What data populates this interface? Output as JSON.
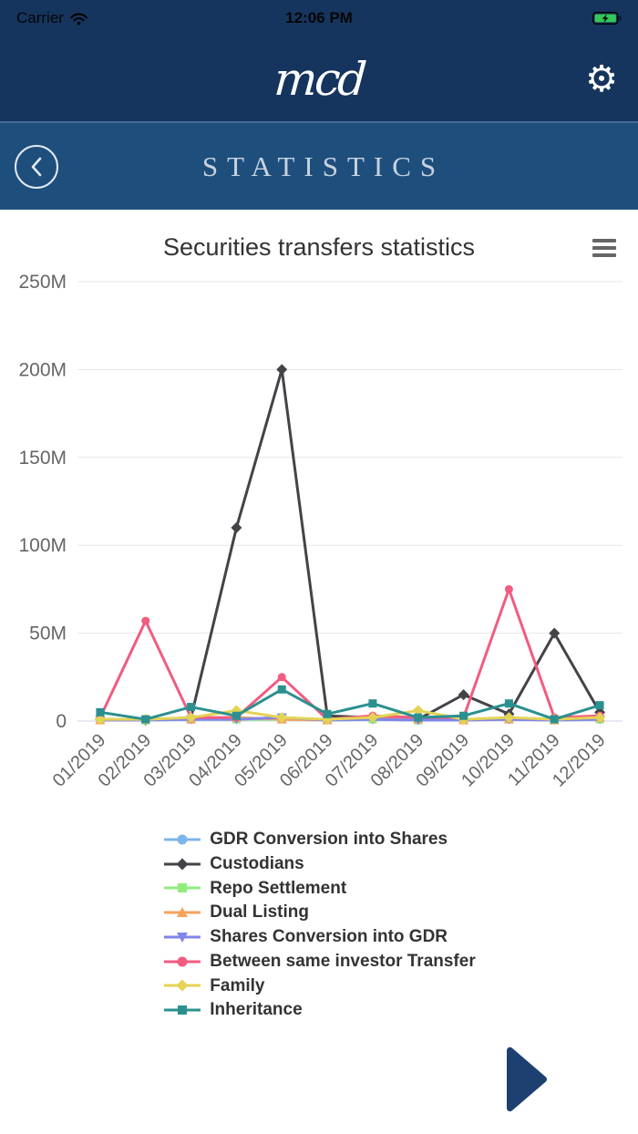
{
  "status_bar": {
    "carrier": "Carrier",
    "time": "12:06 PM"
  },
  "header": {
    "logo": "mcd"
  },
  "icons": {
    "gear": "⚙"
  },
  "nav": {
    "title": "STATISTICS"
  },
  "chart_data": {
    "type": "line",
    "title": "Securities transfers statistics",
    "xlabel": "",
    "ylabel": "",
    "value_unit": "M",
    "ylim_m": [
      0,
      250
    ],
    "ytick_values_m": [
      0,
      50,
      100,
      150,
      200,
      250
    ],
    "ytick_labels": [
      "0",
      "50M",
      "100M",
      "150M",
      "200M",
      "250M"
    ],
    "grid": true,
    "legend_position": "bottom",
    "categories": [
      "01/2019",
      "02/2019",
      "03/2019",
      "04/2019",
      "05/2019",
      "06/2019",
      "07/2019",
      "08/2019",
      "09/2019",
      "10/2019",
      "11/2019",
      "12/2019"
    ],
    "series": [
      {
        "name": "GDR Conversion into Shares",
        "color": "#7cb5ec",
        "marker": "circle",
        "values_m": [
          1,
          0.5,
          1,
          1,
          2,
          0.5,
          1,
          0.5,
          1,
          1,
          0.5,
          1
        ]
      },
      {
        "name": "Custodians",
        "color": "#434348",
        "marker": "diamond",
        "values_m": [
          1,
          0.5,
          2,
          110,
          200,
          3,
          2,
          1,
          15,
          4,
          50,
          5
        ]
      },
      {
        "name": "Repo Settlement",
        "color": "#90ed7d",
        "marker": "square",
        "values_m": [
          0.5,
          0.5,
          1,
          1,
          1,
          0.5,
          1,
          0.5,
          0.5,
          1,
          0.5,
          1
        ]
      },
      {
        "name": "Dual Listing",
        "color": "#f7a35c",
        "marker": "triangle",
        "values_m": [
          0.5,
          1,
          1,
          2,
          1,
          0.5,
          3,
          1,
          0.5,
          1,
          0.5,
          2
        ]
      },
      {
        "name": "Shares Conversion into GDR",
        "color": "#8085e9",
        "marker": "triangle-down",
        "values_m": [
          0.5,
          0.5,
          1,
          1,
          2,
          0.5,
          1,
          0.5,
          0.5,
          1,
          0.5,
          1
        ]
      },
      {
        "name": "Between same investor Transfer",
        "color": "#f15c80",
        "marker": "circle",
        "values_m": [
          2,
          57,
          2,
          2,
          25,
          1,
          3,
          2,
          2,
          75,
          2,
          3
        ]
      },
      {
        "name": "Family",
        "color": "#e4d354",
        "marker": "diamond",
        "values_m": [
          1,
          1,
          2,
          6,
          2,
          1,
          2,
          6,
          1,
          2,
          1,
          2
        ]
      },
      {
        "name": "Inheritance",
        "color": "#2b908f",
        "marker": "square",
        "values_m": [
          5,
          1,
          8,
          3,
          18,
          4,
          10,
          2,
          3,
          10,
          1,
          9
        ]
      }
    ]
  }
}
